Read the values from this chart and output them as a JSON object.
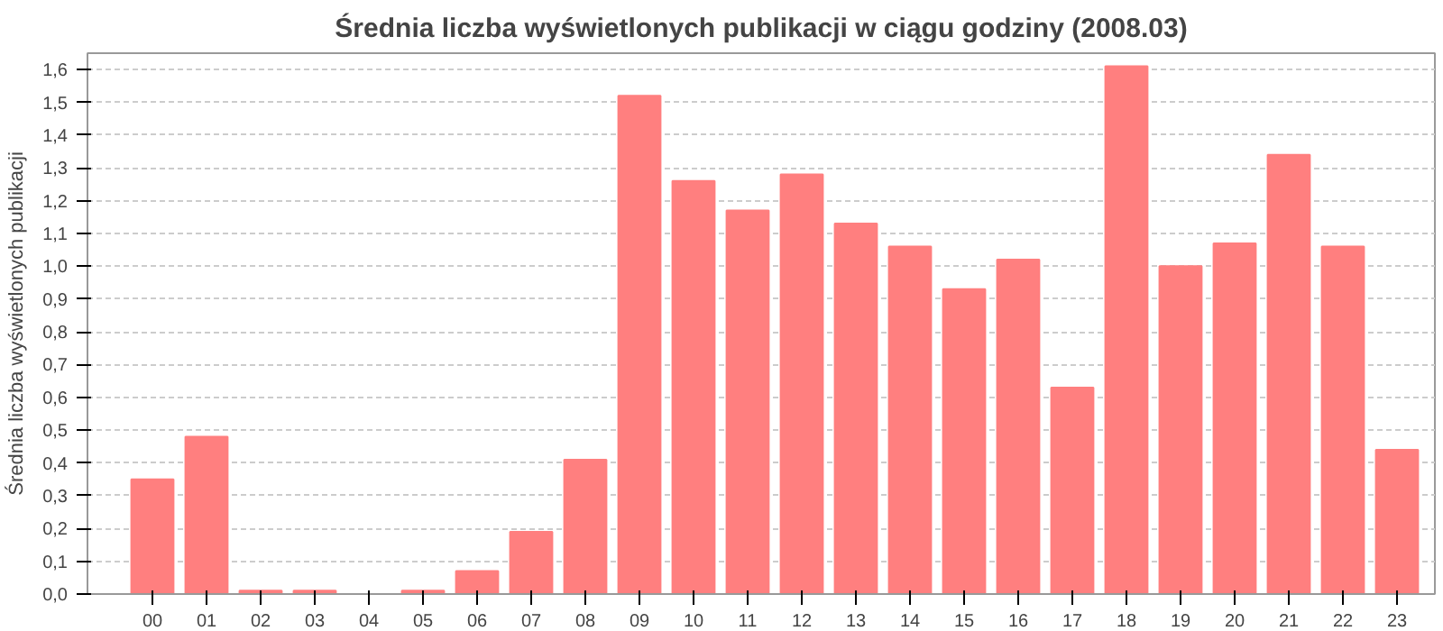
{
  "chart_data": {
    "type": "bar",
    "title": "Średnia liczba wyświetlonych publikacji w ciągu godziny (2008.03)",
    "ylabel": "Średnia liczba wyświetlonych publikacji",
    "categories": [
      "00",
      "01",
      "02",
      "03",
      "04",
      "05",
      "06",
      "07",
      "08",
      "09",
      "10",
      "11",
      "12",
      "13",
      "14",
      "15",
      "16",
      "17",
      "18",
      "19",
      "20",
      "21",
      "22",
      "23"
    ],
    "values": [
      0.35,
      0.48,
      0.01,
      0.01,
      0.0,
      0.01,
      0.07,
      0.19,
      0.41,
      1.52,
      1.26,
      1.17,
      1.28,
      1.13,
      1.06,
      0.93,
      1.02,
      0.63,
      1.61,
      1.0,
      1.07,
      1.34,
      1.06,
      0.44
    ],
    "color": "#ff7f7f",
    "ylim": [
      0,
      1.65
    ],
    "yticks": [
      {
        "value": 0,
        "label": "0,0"
      },
      {
        "value": 0.1,
        "label": "0,1"
      },
      {
        "value": 0.2,
        "label": "0,2"
      },
      {
        "value": 0.3,
        "label": "0,3"
      },
      {
        "value": 0.4,
        "label": "0,4"
      },
      {
        "value": 0.5,
        "label": "0,5"
      },
      {
        "value": 0.6,
        "label": "0,6"
      },
      {
        "value": 0.7,
        "label": "0,7"
      },
      {
        "value": 0.8,
        "label": "0,8"
      },
      {
        "value": 0.9,
        "label": "0,9"
      },
      {
        "value": 1.0,
        "label": "1,0"
      },
      {
        "value": 1.1,
        "label": "1,1"
      },
      {
        "value": 1.2,
        "label": "1,2"
      },
      {
        "value": 1.3,
        "label": "1,3"
      },
      {
        "value": 1.4,
        "label": "1,4"
      },
      {
        "value": 1.5,
        "label": "1,5"
      },
      {
        "value": 1.6,
        "label": "1,6"
      }
    ],
    "grid": "y"
  }
}
